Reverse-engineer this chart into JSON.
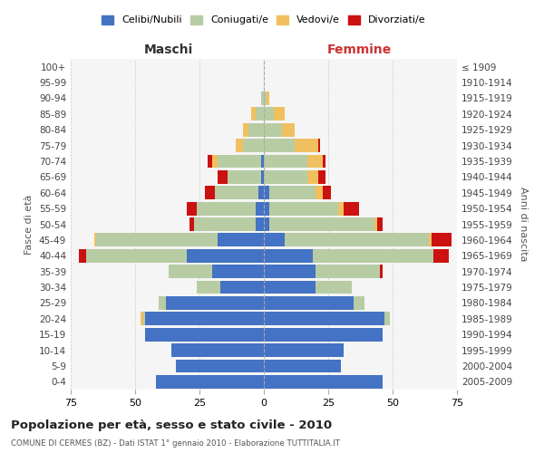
{
  "age_groups": [
    "100+",
    "95-99",
    "90-94",
    "85-89",
    "80-84",
    "75-79",
    "70-74",
    "65-69",
    "60-64",
    "55-59",
    "50-54",
    "45-49",
    "40-44",
    "35-39",
    "30-34",
    "25-29",
    "20-24",
    "15-19",
    "10-14",
    "5-9",
    "0-4"
  ],
  "birth_years": [
    "≤ 1909",
    "1910-1914",
    "1915-1919",
    "1920-1924",
    "1925-1929",
    "1930-1934",
    "1935-1939",
    "1940-1944",
    "1945-1949",
    "1950-1954",
    "1955-1959",
    "1960-1964",
    "1965-1969",
    "1970-1974",
    "1975-1979",
    "1980-1984",
    "1985-1989",
    "1990-1994",
    "1995-1999",
    "2000-2004",
    "2005-2009"
  ],
  "maschi": {
    "celibe": [
      0,
      0,
      0,
      0,
      0,
      0,
      1,
      1,
      2,
      3,
      3,
      18,
      30,
      20,
      17,
      38,
      46,
      46,
      36,
      34,
      42
    ],
    "coniugato": [
      0,
      0,
      1,
      3,
      6,
      8,
      17,
      13,
      17,
      23,
      24,
      47,
      39,
      17,
      9,
      3,
      1,
      0,
      0,
      0,
      0
    ],
    "vedovo": [
      0,
      0,
      0,
      2,
      2,
      3,
      2,
      0,
      0,
      0,
      0,
      1,
      0,
      0,
      0,
      0,
      1,
      0,
      0,
      0,
      0
    ],
    "divorziato": [
      0,
      0,
      0,
      0,
      0,
      0,
      2,
      4,
      4,
      4,
      2,
      0,
      3,
      0,
      0,
      0,
      0,
      0,
      0,
      0,
      0
    ]
  },
  "femmine": {
    "nubile": [
      0,
      0,
      0,
      0,
      0,
      0,
      0,
      0,
      2,
      2,
      2,
      8,
      19,
      20,
      20,
      35,
      47,
      46,
      31,
      30,
      46
    ],
    "coniugata": [
      0,
      0,
      1,
      4,
      7,
      12,
      17,
      17,
      18,
      27,
      41,
      56,
      47,
      25,
      14,
      4,
      2,
      0,
      0,
      0,
      0
    ],
    "vedova": [
      0,
      0,
      1,
      4,
      5,
      9,
      6,
      4,
      3,
      2,
      1,
      1,
      0,
      0,
      0,
      0,
      0,
      0,
      0,
      0,
      0
    ],
    "divorziata": [
      0,
      0,
      0,
      0,
      0,
      1,
      1,
      3,
      3,
      6,
      2,
      8,
      6,
      1,
      0,
      0,
      0,
      0,
      0,
      0,
      0
    ]
  },
  "colors": {
    "celibe": "#4472c4",
    "coniugato": "#b8cca4",
    "vedovo": "#f0c060",
    "divorziato": "#cc1111"
  },
  "xlim": 75,
  "title": "Popolazione per età, sesso e stato civile - 2010",
  "subtitle": "COMUNE DI CERMES (BZ) - Dati ISTAT 1° gennaio 2010 - Elaborazione TUTTITALIA.IT",
  "ylabel_left": "Fasce di età",
  "ylabel_right": "Anni di nascita",
  "legend_labels": [
    "Celibi/Nubili",
    "Coniugati/e",
    "Vedovi/e",
    "Divorziati/e"
  ],
  "maschi_label": "Maschi",
  "femmine_label": "Femmine",
  "bg_color": "#f5f5f5",
  "grid_color": "#cccccc"
}
